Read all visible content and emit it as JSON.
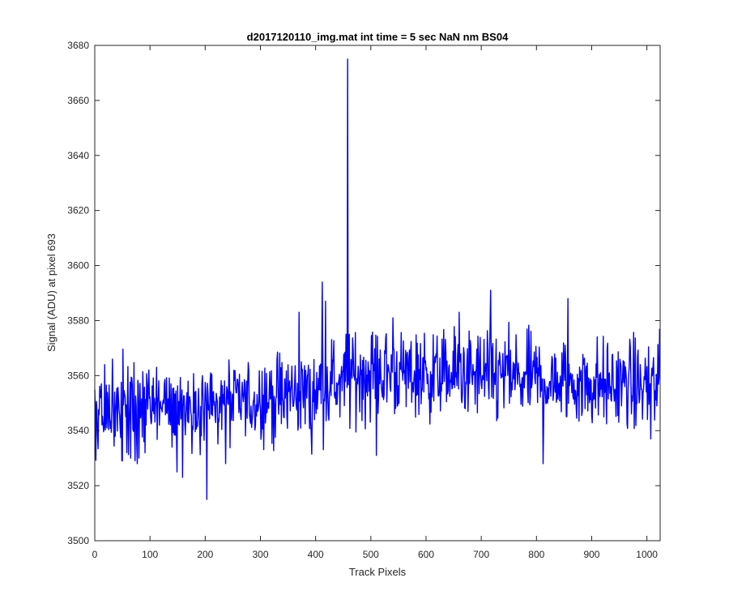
{
  "chart_data": {
    "type": "line",
    "title": "d2017120110_img.mat int time = 5 sec  NaN nm BS04",
    "xlabel": "Track Pixels",
    "ylabel": "Signal (ADU) at pixel 693",
    "xlim": [
      0,
      1024
    ],
    "ylim": [
      3500,
      3680
    ],
    "xticks": [
      0,
      100,
      200,
      300,
      400,
      500,
      600,
      700,
      800,
      900,
      1000
    ],
    "yticks": [
      3500,
      3520,
      3540,
      3560,
      3580,
      3600,
      3620,
      3640,
      3660,
      3680
    ],
    "grid": false,
    "legend": "none",
    "line_color": "#0000ff",
    "series": [
      {
        "n_points": 1024,
        "anchors": [
          {
            "x": 1,
            "y": 3548
          },
          {
            "x": 5,
            "y": 3538
          },
          {
            "x": 12,
            "y": 3557
          },
          {
            "x": 22,
            "y": 3541
          },
          {
            "x": 32,
            "y": 3566
          },
          {
            "x": 50,
            "y": 3529
          },
          {
            "x": 65,
            "y": 3530
          },
          {
            "x": 77,
            "y": 3528
          },
          {
            "x": 95,
            "y": 3556
          },
          {
            "x": 112,
            "y": 3563
          },
          {
            "x": 140,
            "y": 3534
          },
          {
            "x": 149,
            "y": 3525
          },
          {
            "x": 159,
            "y": 3523
          },
          {
            "x": 165,
            "y": 3546
          },
          {
            "x": 185,
            "y": 3543
          },
          {
            "x": 196,
            "y": 3553
          },
          {
            "x": 203,
            "y": 3515
          },
          {
            "x": 210,
            "y": 3561
          },
          {
            "x": 237,
            "y": 3528
          },
          {
            "x": 260,
            "y": 3556
          },
          {
            "x": 300,
            "y": 3548
          },
          {
            "x": 340,
            "y": 3552
          },
          {
            "x": 370,
            "y": 3583
          },
          {
            "x": 392,
            "y": 3539
          },
          {
            "x": 412,
            "y": 3594
          },
          {
            "x": 418,
            "y": 3587
          },
          {
            "x": 430,
            "y": 3557
          },
          {
            "x": 458,
            "y": 3675
          },
          {
            "x": 461,
            "y": 3575
          },
          {
            "x": 495,
            "y": 3565
          },
          {
            "x": 510,
            "y": 3531
          },
          {
            "x": 540,
            "y": 3581
          },
          {
            "x": 560,
            "y": 3561
          },
          {
            "x": 600,
            "y": 3562
          },
          {
            "x": 660,
            "y": 3583
          },
          {
            "x": 700,
            "y": 3557
          },
          {
            "x": 717,
            "y": 3591
          },
          {
            "x": 745,
            "y": 3567
          },
          {
            "x": 770,
            "y": 3556
          },
          {
            "x": 800,
            "y": 3561
          },
          {
            "x": 812,
            "y": 3528
          },
          {
            "x": 830,
            "y": 3551
          },
          {
            "x": 857,
            "y": 3588
          },
          {
            "x": 880,
            "y": 3558
          },
          {
            "x": 920,
            "y": 3559
          },
          {
            "x": 960,
            "y": 3556
          },
          {
            "x": 990,
            "y": 3555
          },
          {
            "x": 1007,
            "y": 3537
          },
          {
            "x": 1018,
            "y": 3549
          },
          {
            "x": 1023,
            "y": 3577
          }
        ],
        "baseline": [
          {
            "x": 0,
            "y": 3548
          },
          {
            "x": 200,
            "y": 3549
          },
          {
            "x": 300,
            "y": 3551
          },
          {
            "x": 400,
            "y": 3555
          },
          {
            "x": 500,
            "y": 3561
          },
          {
            "x": 700,
            "y": 3560
          },
          {
            "x": 900,
            "y": 3557
          },
          {
            "x": 1024,
            "y": 3556
          }
        ],
        "noise_amplitude": 8
      }
    ]
  }
}
